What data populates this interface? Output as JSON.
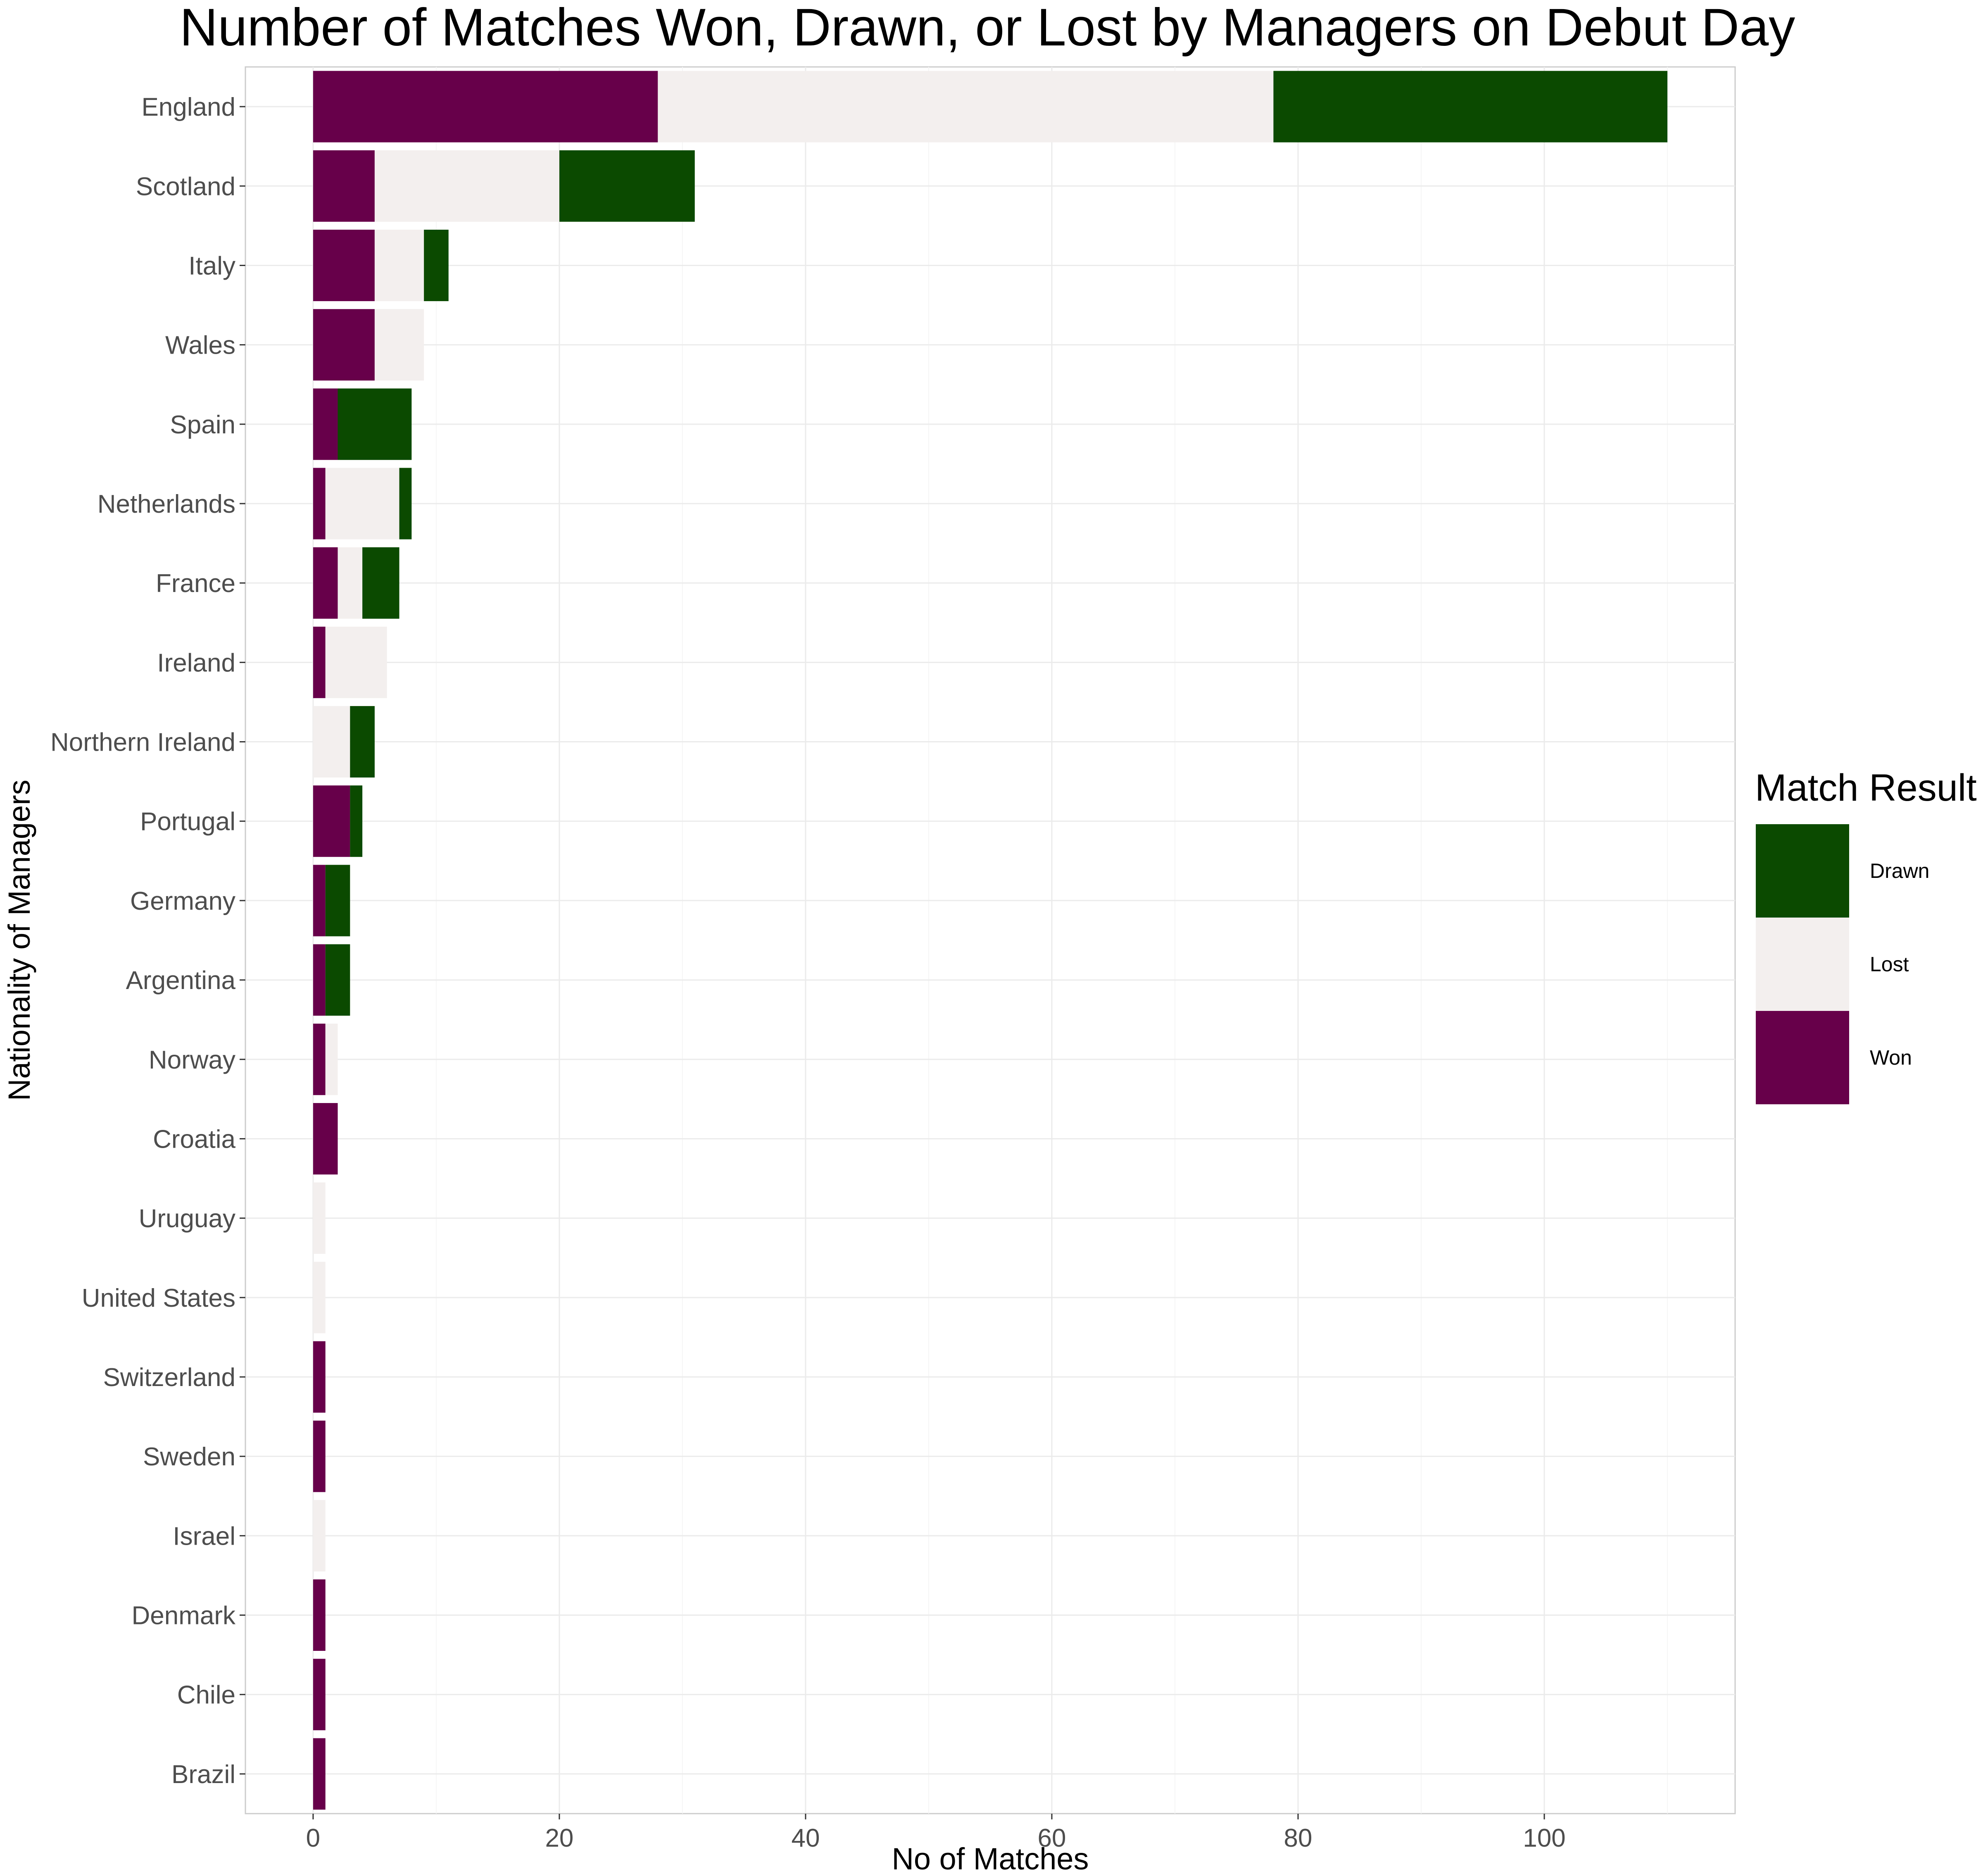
{
  "chart_data": {
    "type": "bar",
    "orientation": "horizontal",
    "stacked": true,
    "title": "Number of Matches Won, Drawn, or Lost by Managers on Debut Day",
    "xlabel": "No of Matches",
    "ylabel": "Nationality of Managers",
    "xlim": [
      -5.5,
      115.5
    ],
    "xticks": [
      0,
      20,
      40,
      60,
      80,
      100
    ],
    "grid": true,
    "legend_position": "right",
    "legend_title": "Match Result",
    "categories": [
      "England",
      "Scotland",
      "Italy",
      "Wales",
      "Spain",
      "Netherlands",
      "France",
      "Ireland",
      "Northern Ireland",
      "Portugal",
      "Germany",
      "Argentina",
      "Norway",
      "Croatia",
      "Uruguay",
      "United States",
      "Switzerland",
      "Sweden",
      "Israel",
      "Denmark",
      "Chile",
      "Brazil"
    ],
    "series": [
      {
        "name": "Won",
        "color": "#67004a",
        "values": [
          28,
          5,
          5,
          5,
          2,
          1,
          2,
          1,
          0,
          3,
          1,
          1,
          1,
          2,
          0,
          0,
          1,
          1,
          0,
          1,
          1,
          1
        ]
      },
      {
        "name": "Lost",
        "color": "#f3efee",
        "values": [
          50,
          15,
          4,
          4,
          0,
          6,
          2,
          5,
          3,
          0,
          0,
          0,
          1,
          0,
          1,
          1,
          0,
          0,
          1,
          0,
          0,
          0
        ]
      },
      {
        "name": "Drawn",
        "color": "#0b4a00",
        "values": [
          32,
          11,
          2,
          0,
          6,
          1,
          3,
          0,
          2,
          1,
          2,
          2,
          0,
          0,
          0,
          0,
          0,
          0,
          0,
          0,
          0,
          0
        ]
      }
    ],
    "legend_order": [
      "Drawn",
      "Lost",
      "Won"
    ]
  }
}
